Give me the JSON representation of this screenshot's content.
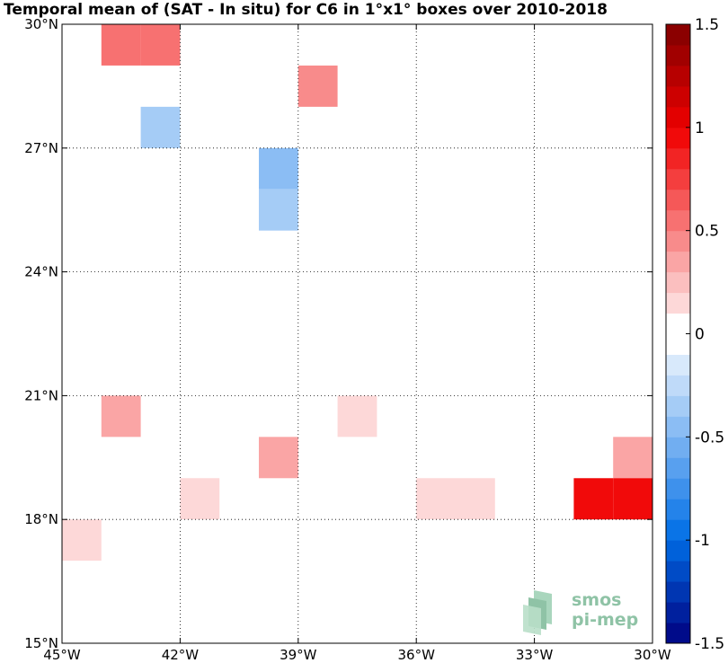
{
  "chart_data": {
    "type": "heatmap",
    "title": "Temporal mean of (SAT - In situ) for C6 in 1°x1° boxes over 2010-2018",
    "x_axis": {
      "range": [
        -45,
        -30
      ],
      "ticks": [
        -45,
        -42,
        -39,
        -36,
        -33,
        -30
      ],
      "tick_labels": [
        "45°W",
        "42°W",
        "39°W",
        "36°W",
        "33°W",
        "30°W"
      ]
    },
    "y_axis": {
      "range": [
        15,
        30
      ],
      "ticks": [
        15,
        18,
        21,
        24,
        27,
        30
      ],
      "tick_labels": [
        "15°N",
        "18°N",
        "21°N",
        "24°N",
        "27°N",
        "30°N"
      ]
    },
    "grid": true,
    "colorbar": {
      "range": [
        -1.5,
        1.5
      ],
      "levels": 30,
      "ticks": [
        1.5,
        1,
        0.5,
        0,
        -0.5,
        -1,
        -1.5
      ],
      "tick_labels": [
        "1.5",
        "1",
        "0.5",
        "0",
        "-0.5",
        "-1",
        "-1.5"
      ],
      "placement": "right"
    },
    "cells": [
      {
        "lon": -44,
        "lat": 29,
        "value": 0.55
      },
      {
        "lon": -43,
        "lat": 29,
        "value": 0.55
      },
      {
        "lon": -39,
        "lat": 28,
        "value": 0.45
      },
      {
        "lon": -43,
        "lat": 27,
        "value": -0.3
      },
      {
        "lon": -40,
        "lat": 26,
        "value": -0.5
      },
      {
        "lon": -40,
        "lat": 25,
        "value": -0.3
      },
      {
        "lon": -44,
        "lat": 20,
        "value": 0.3
      },
      {
        "lon": -38,
        "lat": 20,
        "value": 0.15
      },
      {
        "lon": -40,
        "lat": 19,
        "value": 0.3
      },
      {
        "lon": -31,
        "lat": 19,
        "value": 0.3
      },
      {
        "lon": -42,
        "lat": 18,
        "value": 0.15
      },
      {
        "lon": -36,
        "lat": 18,
        "value": 0.15
      },
      {
        "lon": -35,
        "lat": 18,
        "value": 0.15
      },
      {
        "lon": -32,
        "lat": 18,
        "value": 0.95
      },
      {
        "lon": -31,
        "lat": 18,
        "value": 0.95
      },
      {
        "lon": -45,
        "lat": 17,
        "value": 0.15
      }
    ]
  },
  "logo": {
    "line1": "smos",
    "line2": "pi-mep"
  }
}
